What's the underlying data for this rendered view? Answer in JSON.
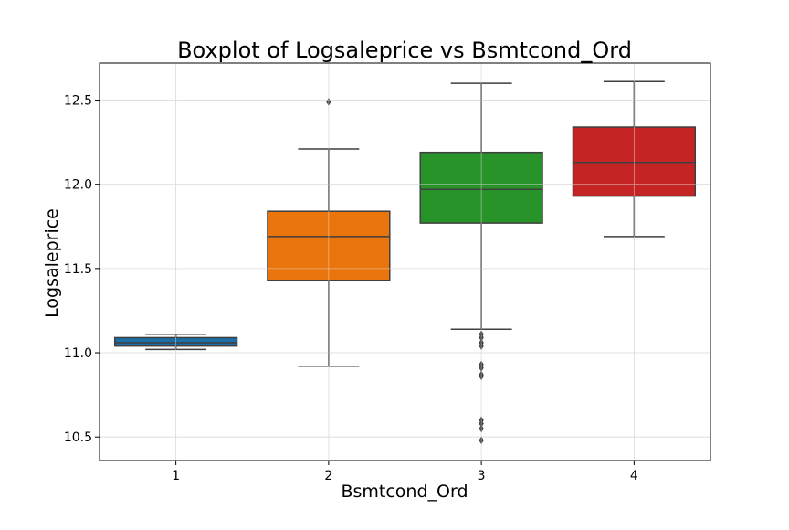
{
  "chart_data": {
    "type": "boxplot",
    "title": "Boxplot of Logsaleprice vs Bsmtcond_Ord",
    "xlabel": "Bsmtcond_Ord",
    "ylabel": "Logsaleprice",
    "categories": [
      "1",
      "2",
      "3",
      "4"
    ],
    "ylim": [
      10.36,
      12.72
    ],
    "yticks": [
      10.5,
      11.0,
      11.5,
      12.0,
      12.5
    ],
    "ytick_labels": [
      "10.5",
      "11.0",
      "11.5",
      "12.0",
      "12.5"
    ],
    "grid": true,
    "boxes": [
      {
        "category": "1",
        "color": "#1f77b4",
        "whisker_low": 11.02,
        "q1": 11.04,
        "median": 11.06,
        "q3": 11.09,
        "whisker_high": 11.11,
        "outliers": []
      },
      {
        "category": "2",
        "color": "#ff7f0e",
        "whisker_low": 10.92,
        "q1": 11.43,
        "median": 11.69,
        "q3": 11.84,
        "whisker_high": 12.21,
        "outliers": [
          12.49
        ]
      },
      {
        "category": "3",
        "color": "#2ca02c",
        "whisker_low": 11.14,
        "q1": 11.77,
        "median": 11.97,
        "q3": 12.19,
        "whisker_high": 12.6,
        "outliers": [
          11.11,
          11.09,
          11.06,
          11.04,
          10.93,
          10.91,
          10.87,
          10.86,
          10.6,
          10.58,
          10.55,
          10.48
        ]
      },
      {
        "category": "4",
        "color": "#d62728",
        "whisker_low": 11.69,
        "q1": 11.93,
        "median": 12.13,
        "q3": 12.34,
        "whisker_high": 12.61,
        "outliers": []
      }
    ]
  }
}
